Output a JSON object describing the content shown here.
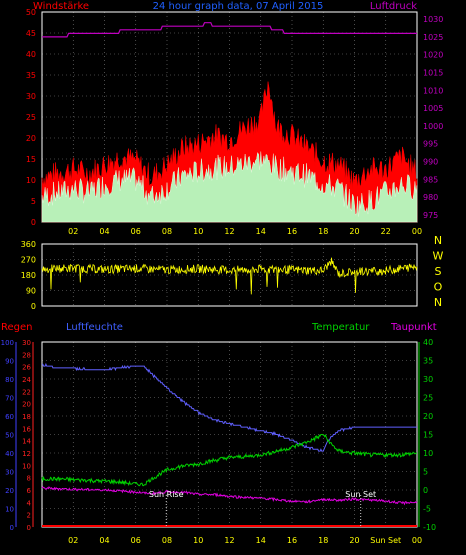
{
  "header": {
    "left_label": "Windstärke",
    "center_label": "24 hour graph data, 07 April 2015",
    "right_label": "Luftdruck"
  },
  "colors": {
    "background": "#000000",
    "frame": "#ffffff",
    "grid": "#808080",
    "wind_label": "#ff0000",
    "pressure": "#c000c0",
    "wind_gust": "#ff0000",
    "wind_avg": "#e0ffe0",
    "direction": "#ffff00",
    "humidity": "#6060ff",
    "temperature": "#00d000",
    "dewpoint": "#e000e0",
    "rain": "#ff0000",
    "tick_label": "#ffff00",
    "blue_axis": "#4040ff",
    "red_axis": "#ff2020",
    "green_axis": "#00d000",
    "title_blue": "#2060ff"
  },
  "x_ticks": [
    "02",
    "04",
    "06",
    "08",
    "10",
    "12",
    "14",
    "16",
    "18",
    "20",
    "22",
    "00"
  ],
  "x_ticks_bottom": [
    "02",
    "04",
    "06",
    "08",
    "10",
    "12",
    "14",
    "16",
    "18",
    "20",
    "Sun Set",
    "00"
  ],
  "chart_data": [
    {
      "type": "line",
      "title": "Windstärke / Luftdruck",
      "x_range_hours": [
        0,
        24
      ],
      "left_axis": {
        "label": "Windstärke",
        "ticks": [
          0,
          5,
          10,
          15,
          20,
          25,
          30,
          35,
          40,
          45,
          50
        ],
        "ylim": [
          0,
          50
        ]
      },
      "right_axis": {
        "label": "Luftdruck",
        "ticks": [
          975,
          980,
          985,
          990,
          995,
          1000,
          1005,
          1010,
          1015,
          1020,
          1025,
          1030
        ],
        "ylim": [
          973,
          1032
        ]
      },
      "series": [
        {
          "name": "Luftdruck",
          "axis": "right",
          "x": [
            0,
            1.6,
            1.7,
            4.9,
            5,
            7.6,
            7.7,
            9.4,
            9.5,
            10.3,
            10.4,
            10.8,
            10.9,
            11.6,
            11.7,
            14.6,
            14.7,
            15.4,
            15.5,
            17.0,
            17.1,
            24
          ],
          "values": [
            1025,
            1025,
            1026,
            1026,
            1027,
            1027,
            1028,
            1028,
            1028,
            1028,
            1029,
            1029,
            1028,
            1028,
            1028,
            1028,
            1027,
            1027,
            1026,
            1026,
            1026,
            1026
          ]
        },
        {
          "name": "Windböen",
          "axis": "left",
          "x": [
            0,
            1,
            2,
            3,
            4,
            5,
            6,
            7,
            8,
            9,
            10,
            11,
            12,
            13,
            14,
            14.5,
            15,
            16,
            17,
            18,
            19,
            20,
            21,
            22,
            23,
            24
          ],
          "values": [
            10,
            11,
            12,
            11,
            13,
            15,
            14,
            10,
            13,
            17,
            18,
            20,
            19,
            22,
            24,
            33,
            22,
            20,
            17,
            14,
            13,
            9,
            12,
            12,
            15,
            11
          ]
        },
        {
          "name": "Windmittel",
          "axis": "left",
          "x": [
            0,
            1,
            2,
            3,
            4,
            5,
            6,
            7,
            8,
            9,
            10,
            11,
            12,
            13,
            14,
            15,
            16,
            17,
            18,
            19,
            20,
            21,
            22,
            23,
            24
          ],
          "values": [
            6,
            7,
            8,
            7,
            9,
            10,
            10,
            6,
            8,
            11,
            12,
            13,
            13,
            14,
            15,
            13,
            12,
            11,
            9,
            8,
            4,
            5,
            7,
            9,
            8
          ]
        }
      ]
    },
    {
      "type": "line",
      "title": "Windrichtung",
      "x_range_hours": [
        0,
        24
      ],
      "left_axis": {
        "ticks": [
          0,
          90,
          180,
          270,
          360
        ],
        "ylim": [
          0,
          360
        ]
      },
      "right_axis_labels": [
        "N",
        "W",
        "S",
        "O",
        "N"
      ],
      "series": [
        {
          "name": "Windrichtung",
          "x": [
            0,
            2,
            4,
            6,
            8,
            10,
            12,
            14,
            16,
            18,
            18.5,
            19,
            20,
            22,
            24
          ],
          "values": [
            215,
            220,
            212,
            218,
            210,
            216,
            208,
            214,
            210,
            205,
            260,
            185,
            200,
            205,
            230
          ]
        }
      ]
    },
    {
      "type": "line",
      "title": "Regen / Luftfeuchte / Temperatur / Taupunkt",
      "x_range_hours": [
        0,
        24
      ],
      "legend": [
        "Regen",
        "Luftfeuchte",
        "Temperatur",
        "Taupunkt"
      ],
      "humidity_axis": {
        "ticks": [
          0,
          10,
          20,
          30,
          40,
          50,
          60,
          70,
          80,
          90,
          100
        ],
        "ylim": [
          0,
          100
        ]
      },
      "rain_axis": {
        "ticks": [
          0,
          2,
          4,
          6,
          8,
          10,
          12,
          14,
          16,
          18,
          20,
          22,
          24,
          26,
          28,
          30
        ],
        "ylim": [
          0,
          30
        ]
      },
      "temp_axis": {
        "ticks": [
          -10,
          -5,
          0,
          5,
          10,
          15,
          20,
          25,
          30,
          35,
          40
        ],
        "ylim": [
          -10,
          40
        ]
      },
      "series": [
        {
          "name": "Luftfeuchte",
          "axis": "humidity",
          "x": [
            0,
            1,
            2,
            3,
            4,
            5,
            6,
            6.5,
            7,
            8,
            9,
            10,
            11,
            12,
            13,
            14,
            15,
            16,
            16.5,
            17,
            17.5,
            18,
            18.3,
            19,
            20,
            21,
            22,
            23,
            24
          ],
          "values": [
            88,
            86,
            86,
            85,
            85,
            86,
            87,
            87,
            83,
            75,
            68,
            62,
            58,
            56,
            54,
            52,
            50,
            47,
            45,
            43,
            42,
            41,
            47,
            52,
            54,
            54,
            54,
            54,
            54
          ]
        },
        {
          "name": "Temperatur",
          "axis": "temp",
          "x": [
            0,
            1,
            2,
            3,
            4,
            5,
            6,
            6.5,
            7,
            8,
            9,
            10,
            11,
            12,
            13,
            14,
            15,
            16,
            17,
            17.5,
            18,
            18.5,
            19,
            20,
            21,
            22,
            23,
            24
          ],
          "values": [
            3,
            3,
            2.8,
            2.6,
            2.4,
            2.1,
            1.6,
            1.5,
            3,
            5.4,
            6.5,
            7,
            8,
            8.8,
            9,
            9.5,
            10.5,
            11.5,
            13,
            14,
            15,
            12.5,
            10.5,
            10,
            9.5,
            9.5,
            9.5,
            10
          ]
        },
        {
          "name": "Taupunkt",
          "axis": "temp",
          "x": [
            0,
            2,
            4,
            6,
            7,
            8,
            9,
            10,
            11,
            12,
            13,
            14,
            15,
            16,
            17,
            18,
            19,
            20,
            22,
            23,
            24
          ],
          "values": [
            0.5,
            0.2,
            0,
            -0.5,
            -1,
            -0.5,
            -0.6,
            -1.2,
            -1.2,
            -1.7,
            -2,
            -2.2,
            -2.6,
            -3,
            -3.2,
            -2.5,
            -2.8,
            -2.4,
            -3,
            -3.5,
            -3.3
          ]
        },
        {
          "name": "Regen",
          "axis": "rain",
          "x": [
            0,
            24
          ],
          "values": [
            0,
            0
          ]
        }
      ],
      "annotations": [
        {
          "label": "Sun Rise",
          "x_hour": 7.95
        },
        {
          "label": "Sun Set",
          "x_hour": 20.4
        }
      ]
    }
  ],
  "panel3_labels": {
    "regen": "Regen",
    "luftfeuchte": "Luftfeuchte",
    "temperatur": "Temperatur",
    "taupunkt": "Taupunkt",
    "sun_rise": "Sun Rise",
    "sun_set": "Sun Set"
  }
}
